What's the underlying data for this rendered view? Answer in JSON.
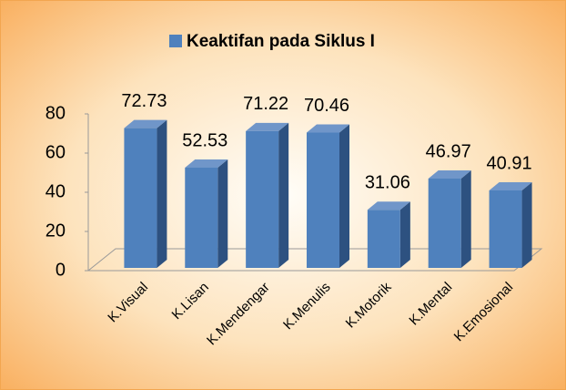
{
  "chart_data": {
    "type": "bar",
    "categories": [
      "K.Visual",
      "K.Lisan",
      "K.Mendengar",
      "K.Menulis",
      "K.Motorik",
      "K.Mental",
      "K.Emosional"
    ],
    "series": [
      {
        "name": "Keaktifan pada Siklus I",
        "color": "#4f81bd",
        "values": [
          72.73,
          52.53,
          71.22,
          70.46,
          31.06,
          46.97,
          40.91
        ]
      }
    ],
    "ylim": [
      0,
      80
    ],
    "yticks": [
      0,
      20,
      40,
      60,
      80
    ],
    "grid": false,
    "legend": "top"
  }
}
